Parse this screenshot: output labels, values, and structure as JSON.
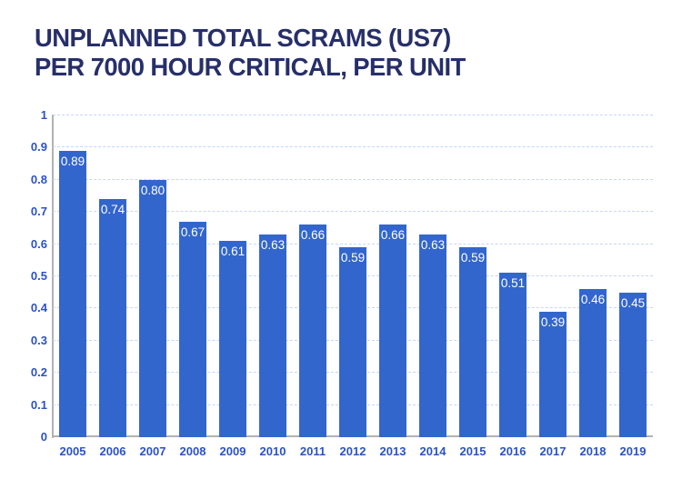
{
  "title": {
    "line1": "UNPLANNED TOTAL SCRAMS (US7)",
    "line2": "PER 7000 HOUR CRITICAL, PER UNIT"
  },
  "colors": {
    "bar": "#3366cc",
    "title_text": "#272f6a",
    "axis_tick_label": "#2b52c5",
    "gridline": "#c7d6f2",
    "axis_line": "#b2b2b2",
    "bar_value_label": "#ffffff",
    "background": "#ffffff"
  },
  "chart_data": {
    "type": "bar",
    "title": "UNPLANNED TOTAL SCRAMS (US7) PER 7000 HOUR CRITICAL, PER UNIT",
    "categories": [
      "2005",
      "2006",
      "2007",
      "2008",
      "2009",
      "2010",
      "2011",
      "2012",
      "2013",
      "2014",
      "2015",
      "2016",
      "2017",
      "2018",
      "2019"
    ],
    "values": [
      0.89,
      0.74,
      0.8,
      0.67,
      0.61,
      0.63,
      0.66,
      0.59,
      0.66,
      0.63,
      0.59,
      0.51,
      0.39,
      0.46,
      0.45
    ],
    "value_labels": [
      "0.89",
      "0.74",
      "0.80",
      "0.67",
      "0.61",
      "0.63",
      "0.66",
      "0.59",
      "0.66",
      "0.63",
      "0.59",
      "0.51",
      "0.39",
      "0.46",
      "0.45"
    ],
    "xlabel": "",
    "ylabel": "",
    "ylim": [
      0,
      1
    ],
    "y_ticks": [
      0,
      0.1,
      0.2,
      0.3,
      0.4,
      0.5,
      0.6,
      0.7,
      0.8,
      0.9,
      1
    ],
    "y_tick_labels": [
      "0",
      "0.1",
      "0.2",
      "0.3",
      "0.4",
      "0.5",
      "0.6",
      "0.7",
      "0.8",
      "0.9",
      "1"
    ],
    "grid": true,
    "legend": "none",
    "value_labels_position": "inside-top"
  }
}
